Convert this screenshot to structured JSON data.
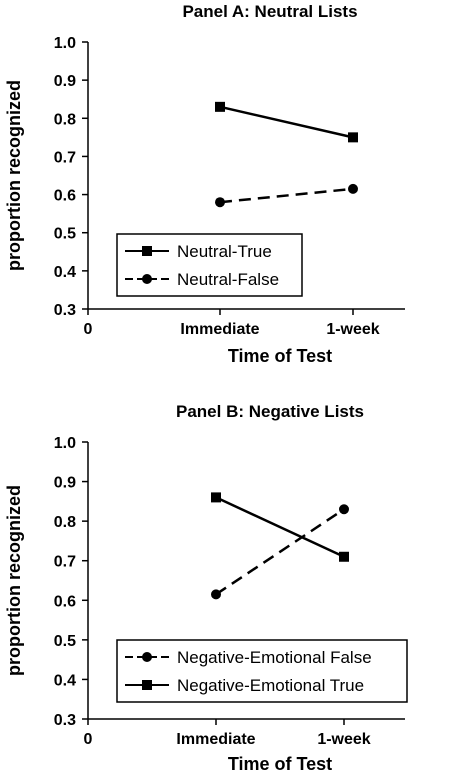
{
  "chart_data": [
    {
      "type": "line",
      "title": "Panel A:  Neutral Lists",
      "xlabel": "Time of Test",
      "ylabel": "proportion recognized",
      "x_origin_label": "0",
      "categories": [
        "Immediate",
        "1-week"
      ],
      "ylim": [
        0.3,
        1.0
      ],
      "yticks": [
        "0.3",
        "0.4",
        "0.5",
        "0.6",
        "0.7",
        "0.8",
        "0.9",
        "1.0"
      ],
      "legend_position": "bottom-left",
      "series": [
        {
          "name": "Neutral-True",
          "values": [
            0.83,
            0.75
          ],
          "marker": "square",
          "dash": "solid"
        },
        {
          "name": "Neutral-False",
          "values": [
            0.58,
            0.615
          ],
          "marker": "circle",
          "dash": "dashed"
        }
      ]
    },
    {
      "type": "line",
      "title": "Panel B:   Negative Lists",
      "xlabel": "Time of Test",
      "ylabel": "proportion recognized",
      "x_origin_label": "0",
      "categories": [
        "Immediate",
        "1-week"
      ],
      "ylim": [
        0.3,
        1.0
      ],
      "yticks": [
        "0.3",
        "0.4",
        "0.5",
        "0.6",
        "0.7",
        "0.8",
        "0.9",
        "1.0"
      ],
      "legend_position": "bottom-left",
      "series": [
        {
          "name": "Negative-Emotional False",
          "values": [
            0.615,
            0.83
          ],
          "marker": "circle",
          "dash": "dashed"
        },
        {
          "name": "Negative-Emotional True",
          "values": [
            0.86,
            0.71
          ],
          "marker": "square",
          "dash": "solid"
        }
      ]
    }
  ]
}
